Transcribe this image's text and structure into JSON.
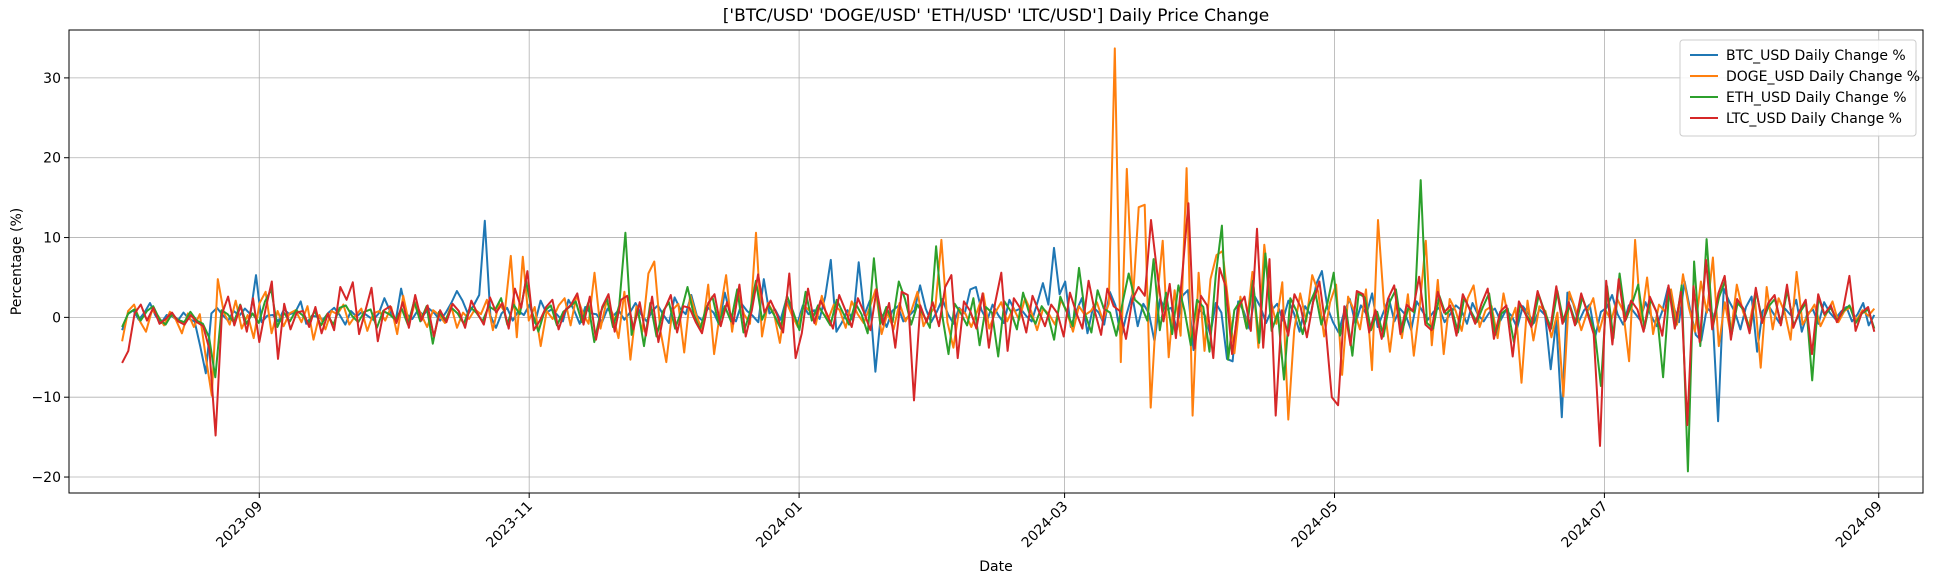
{
  "chart_data": {
    "type": "line",
    "title": "['BTC/USD' 'DOGE/USD' 'ETH/USD' 'LTC/USD'] Daily Price Change",
    "xlabel": "Date",
    "ylabel": "Percentage (%)",
    "xlim": [
      "2023-07-20",
      "2024-09-11"
    ],
    "ylim": [
      -22,
      36
    ],
    "x_ticks": [
      "2023-09",
      "2023-11",
      "2024-01",
      "2024-03",
      "2024-05",
      "2024-07",
      "2024-09"
    ],
    "y_ticks": [
      -20,
      -10,
      0,
      10,
      20,
      30
    ],
    "grid": true,
    "legend_position": "top-right",
    "x": {
      "start": "2023-08-01",
      "end": "2024-08-31",
      "frequency": "daily"
    },
    "series": [
      {
        "name": "BTC_USD Daily Change %",
        "color": "#1f77b4",
        "values": [
          -1.6,
          0.4,
          0.9,
          -0.3,
          0.6,
          1.8,
          0.2,
          -0.7,
          0.3,
          0.1,
          -0.4,
          0.6,
          -0.2,
          -0.5,
          -3.6,
          -7.0,
          0.5,
          1.2,
          0.3,
          -0.4,
          0.8,
          0.2,
          1.1,
          0.4,
          5.3,
          -0.6,
          0.2,
          0.3,
          -0.5,
          1.0,
          0.4,
          0.6,
          2.0,
          -0.8,
          0.2,
          0.1,
          -0.3,
          0.6,
          1.2,
          0.3,
          -0.9,
          0.8,
          0.1,
          0.7,
          0.2,
          -0.3,
          0.5,
          2.4,
          0.8,
          -0.6,
          3.6,
          0.4,
          -0.2,
          0.9,
          0.3,
          1.1,
          0.5,
          -0.4,
          0.6,
          1.8,
          3.3,
          2.1,
          0.4,
          1.5,
          2.8,
          12.1,
          0.2,
          -1.3,
          0.5,
          1.2,
          -0.4,
          0.8,
          0.3,
          1.6,
          -0.7,
          2.1,
          0.6,
          1.0,
          0.3,
          -0.5,
          2.2,
          0.9,
          -0.8,
          1.3,
          0.5,
          0.4,
          -0.6,
          1.1,
          0.2,
          0.9,
          -0.3,
          0.6,
          1.8,
          0.4,
          -0.5,
          0.8,
          1.5,
          0.3,
          -0.7,
          2.5,
          1.1,
          0.4,
          2.8,
          0.2,
          -0.4,
          1.2,
          0.6,
          -0.9,
          3.1,
          0.3,
          -0.5,
          1.7,
          0.8,
          0.2,
          -0.6,
          4.8,
          0.5,
          1.0,
          -0.3,
          2.2,
          0.7,
          -0.8,
          1.5,
          0.4,
          0.9,
          -0.2,
          2.6,
          7.2,
          -1.8,
          -0.6,
          0.9,
          -0.4,
          6.9,
          0.3,
          2.1,
          -6.8,
          0.5,
          -1.2,
          0.8,
          1.4,
          -0.5,
          0.2,
          0.9,
          4.0,
          1.1,
          -0.6,
          0.7,
          2.3,
          0.4,
          -0.8,
          1.2,
          0.5,
          3.5,
          3.8,
          0.9,
          -0.4,
          1.6,
          0.3,
          -0.7,
          2.2,
          0.8,
          1.1,
          0.2,
          -0.5,
          1.8,
          4.3,
          1.6,
          8.7,
          2.9,
          4.5,
          -1.2,
          0.8,
          2.4,
          -2.0,
          1.3,
          0.6,
          -0.9,
          3.2,
          1.5,
          -2.6,
          0.4,
          2.8,
          -1.1,
          1.7,
          0.5,
          -3.0,
          2.3,
          0.9,
          1.2,
          -1.5,
          2.7,
          3.4,
          -4.1,
          1.0,
          0.3,
          -2.2,
          1.8,
          0.6,
          -5.2,
          -5.5,
          2.0,
          0.8,
          -1.4,
          2.6,
          1.3,
          -0.7,
          0.9,
          1.7,
          -0.4,
          2.1,
          0.5,
          -1.8,
          1.4,
          0.3,
          4.2,
          5.8,
          1.2,
          -0.6,
          -1.9,
          0.7,
          2.3,
          -0.8,
          1.5,
          0.4,
          3.0,
          -1.2,
          0.6,
          2.4,
          -0.5,
          1.1,
          0.3,
          -1.6,
          2.0,
          0.8,
          -0.3,
          0.7,
          1.2,
          -0.6,
          0.4,
          1.5,
          0.9,
          -0.8,
          1.8,
          0.3,
          -0.5,
          0.6,
          1.1,
          -0.4,
          0.9,
          0.2,
          -1.3,
          1.4,
          0.5,
          -0.7,
          1.0,
          0.3,
          -6.5,
          -0.4,
          -12.5,
          3.1,
          1.8,
          -0.6,
          0.9,
          1.6,
          -2.4,
          0.7,
          1.2,
          2.8,
          0.4,
          -0.9,
          1.5,
          0.6,
          -0.3,
          1.9,
          0.2,
          -1.1,
          0.8,
          3.7,
          1.4,
          -0.6,
          4.5,
          0.9,
          -2.2,
          -2.9,
          1.2,
          0.5,
          -13.0,
          3.6,
          2.0,
          0.7,
          -1.5,
          1.3,
          2.6,
          -4.3,
          0.8,
          1.5,
          0.4,
          -0.7,
          1.1,
          0.3,
          2.2,
          -1.8,
          0.5,
          1.0,
          -0.8,
          1.9,
          0.6,
          -0.2,
          0.7,
          1.3,
          -0.5,
          0.4,
          1.8,
          -1.0,
          0.3
        ]
      },
      {
        "name": "DOGE_USD Daily Change %",
        "color": "#ff7f0e",
        "values": [
          -3.0,
          0.8,
          1.6,
          -0.5,
          -1.8,
          0.9,
          0.2,
          -1.0,
          0.7,
          -0.3,
          -2.0,
          0.5,
          -1.2,
          0.4,
          -5.0,
          -9.8,
          4.8,
          0.6,
          -0.9,
          2.1,
          -1.4,
          0.3,
          -2.6,
          1.8,
          3.2,
          -2.0,
          0.8,
          -1.1,
          0.5,
          0.9,
          -0.6,
          1.4,
          -2.8,
          0.3,
          -1.5,
          0.8,
          0.4,
          1.6,
          -0.9,
          0.2,
          1.1,
          -1.7,
          0.5,
          0.8,
          -0.4,
          1.3,
          -2.1,
          2.7,
          -0.8,
          1.9,
          0.4,
          -1.2,
          0.9,
          0.3,
          -0.7,
          1.5,
          -1.3,
          0.6,
          -0.2,
          1.0,
          0.4,
          2.2,
          -1.6,
          1.8,
          0.7,
          7.7,
          -2.5,
          7.6,
          -0.4,
          1.3,
          -3.6,
          0.8,
          -0.2,
          1.5,
          2.4,
          -1.0,
          2.8,
          0.6,
          -0.8,
          5.6,
          -1.4,
          2.0,
          0.5,
          -2.6,
          3.2,
          -5.3,
          1.4,
          -1.8,
          5.5,
          7.0,
          -1.6,
          -5.6,
          0.9,
          1.7,
          -4.4,
          2.8,
          0.3,
          -1.6,
          4.1,
          -4.6,
          0.7,
          5.3,
          -1.8,
          3.2,
          0.4,
          -0.8,
          10.6,
          -2.4,
          1.8,
          0.5,
          -3.2,
          2.1,
          0.3,
          -1.2,
          1.5,
          0.8,
          -0.9,
          2.7,
          -0.4,
          1.6,
          0.9,
          -1.3,
          2.0,
          0.4,
          -0.7,
          1.2,
          3.5,
          -2.1,
          0.6,
          -1.5,
          1.8,
          -0.5,
          0.9,
          3.2,
          -1.1,
          0.4,
          1.3,
          9.7,
          -0.6,
          -3.8,
          1.1,
          0.5,
          -1.2,
          0.8,
          3.0,
          -1.4,
          0.6,
          1.9,
          -0.5,
          1.2,
          -0.3,
          2.4,
          0.8,
          -1.6,
          1.1,
          0.4,
          -0.9,
          2.2,
          0.6,
          -1.8,
          1.4,
          0.3,
          0.8,
          1.9,
          -0.4,
          1.7,
          33.7,
          -5.6,
          18.6,
          2.0,
          13.8,
          14.1,
          -11.3,
          1.8,
          9.6,
          -5.0,
          3.4,
          -2.3,
          18.7,
          -12.3,
          5.6,
          -4.2,
          4.8,
          7.8,
          8.3,
          1.6,
          -4.5,
          2.6,
          -1.3,
          5.7,
          -3.8,
          9.1,
          2.4,
          -0.8,
          4.4,
          -12.8,
          -1.6,
          3.0,
          -0.5,
          5.3,
          3.2,
          -2.4,
          1.9,
          4.1,
          -7.2,
          2.6,
          0.9,
          -1.5,
          3.5,
          -6.6,
          12.2,
          1.8,
          -4.3,
          2.0,
          -2.6,
          2.9,
          -4.8,
          1.5,
          9.6,
          -3.5,
          4.7,
          -4.6,
          2.3,
          0.8,
          -1.7,
          2.4,
          4.0,
          -1.2,
          0.9,
          1.4,
          -2.6,
          3.0,
          -0.8,
          1.2,
          -8.2,
          2.1,
          -2.9,
          1.4,
          0.8,
          -2.5,
          0.6,
          -9.9,
          3.2,
          1.1,
          -1.6,
          0.7,
          2.4,
          -1.8,
          1.0,
          -0.4,
          2.3,
          0.8,
          -5.5,
          9.7,
          -0.6,
          5.0,
          -2.1,
          1.6,
          0.7,
          3.5,
          -0.9,
          5.4,
          1.2,
          -1.8,
          4.5,
          0.6,
          7.5,
          -3.6,
          1.9,
          -2.2,
          4.1,
          0.8,
          -1.3,
          2.7,
          -6.3,
          3.8,
          -1.5,
          2.4,
          0.7,
          -2.8,
          5.7,
          -0.9,
          0.4,
          1.6,
          -1.1,
          0.5,
          2.0,
          -0.6,
          0.8,
          1.3,
          -0.4,
          0.9,
          0.2,
          1.1
        ]
      },
      {
        "name": "ETH_USD Daily Change %",
        "color": "#2ca02c",
        "values": [
          -1.2,
          0.5,
          1.0,
          -0.4,
          0.8,
          1.4,
          -0.2,
          -0.9,
          0.4,
          -0.3,
          -0.6,
          0.7,
          -0.4,
          -0.8,
          -2.5,
          -7.5,
          0.9,
          0.4,
          -0.6,
          1.6,
          -0.8,
          0.5,
          -0.7,
          2.0,
          3.5,
          -1.2,
          0.6,
          -0.5,
          0.9,
          0.3,
          -0.7,
          0.8,
          -1.0,
          0.4,
          -0.9,
          1.2,
          1.5,
          0.2,
          -0.6,
          0.7,
          1.0,
          -1.3,
          0.8,
          0.4,
          -0.3,
          1.1,
          -0.9,
          2.0,
          -0.5,
          1.4,
          -3.3,
          0.7,
          -0.4,
          1.2,
          0.5,
          -0.8,
          1.3,
          0.6,
          -0.5,
          1.4,
          0.9,
          2.4,
          -0.9,
          1.6,
          0.4,
          4.6,
          0.6,
          -1.8,
          0.8,
          1.5,
          -1.0,
          0.7,
          1.3,
          2.0,
          -0.6,
          1.8,
          -3.1,
          0.6,
          2.4,
          -1.2,
          1.5,
          10.6,
          -2.2,
          1.1,
          -3.6,
          1.8,
          -2.4,
          0.7,
          1.9,
          -1.4,
          0.8,
          3.8,
          0.4,
          -1.5,
          1.2,
          2.6,
          -0.8,
          1.4,
          -0.5,
          3.5,
          -1.9,
          0.5,
          4.6,
          -0.3,
          1.6,
          0.2,
          -1.4,
          2.7,
          0.7,
          -1.6,
          3.2,
          -0.4,
          1.5,
          0.3,
          -1.0,
          2.2,
          0.6,
          -0.9,
          1.8,
          0.4,
          -2.0,
          7.4,
          -0.8,
          1.3,
          -0.6,
          4.5,
          2.3,
          -0.9,
          1.6,
          0.3,
          -1.3,
          8.9,
          0.2,
          -4.6,
          1.7,
          0.5,
          -1.0,
          2.4,
          -3.5,
          1.3,
          0.6,
          -4.9,
          2.0,
          0.8,
          -1.5,
          3.1,
          0.5,
          -0.8,
          1.4,
          0.3,
          -2.8,
          2.6,
          0.7,
          -1.1,
          6.2,
          0.4,
          -1.9,
          3.4,
          1.1,
          0.6,
          -2.3,
          1.8,
          5.5,
          2.2,
          1.5,
          -0.4,
          7.3,
          -1.6,
          3.1,
          -2.1,
          4.0,
          0.8,
          -3.5,
          2.2,
          1.3,
          -4.3,
          5.2,
          11.5,
          -5.3,
          0.9,
          2.1,
          -1.4,
          4.6,
          -3.2,
          8.0,
          -1.7,
          0.6,
          -7.8,
          2.4,
          0.8,
          -2.1,
          1.5,
          3.3,
          -0.9,
          1.8,
          5.6,
          -2.3,
          1.0,
          -4.8,
          3.0,
          2.5,
          -1.6,
          0.7,
          -2.4,
          1.9,
          3.5,
          -1.8,
          1.2,
          0.6,
          17.2,
          -0.7,
          -1.4,
          2.7,
          0.4,
          1.1,
          -1.9,
          2.4,
          0.9,
          -0.6,
          1.3,
          3.0,
          -2.2,
          0.5,
          1.1,
          -3.1,
          1.6,
          0.3,
          -0.9,
          2.8,
          0.6,
          -1.4,
          3.3,
          -0.6,
          1.5,
          -0.8,
          2.5,
          0.4,
          -1.7,
          -8.6,
          3.9,
          -2.6,
          5.5,
          -0.3,
          1.7,
          4.1,
          -1.4,
          2.2,
          0.6,
          -7.5,
          3.5,
          -1.1,
          4.0,
          -19.3,
          7.0,
          -3.6,
          9.8,
          -1.2,
          2.5,
          4.6,
          -2.3,
          1.8,
          0.9,
          -1.6,
          3.2,
          -0.5,
          1.4,
          2.3,
          -0.8,
          3.4,
          -1.0,
          0.6,
          1.8,
          -7.9,
          2.5,
          0.3,
          1.2,
          -0.4,
          0.8,
          1.5,
          -0.7,
          0.5,
          1.0,
          -1.4
        ]
      },
      {
        "name": "LTC_USD Daily Change %",
        "color": "#d62728",
        "values": [
          -5.7,
          -4.2,
          0.5,
          1.6,
          -0.4,
          1.2,
          -0.8,
          -0.2,
          0.6,
          -0.5,
          -0.9,
          0.3,
          -0.6,
          -1.1,
          -4.0,
          -14.8,
          0.4,
          2.6,
          -1.0,
          1.5,
          -1.8,
          2.4,
          -3.1,
          1.0,
          4.5,
          -5.2,
          1.7,
          -1.5,
          0.6,
          0.8,
          -1.2,
          1.3,
          -2.0,
          0.5,
          -1.6,
          3.8,
          2.2,
          4.4,
          -2.1,
          0.8,
          3.7,
          -3.0,
          0.9,
          1.4,
          -0.7,
          1.9,
          -1.3,
          2.8,
          -0.4,
          1.5,
          -2.4,
          0.9,
          -0.6,
          1.7,
          0.8,
          -1.3,
          2.1,
          0.5,
          -0.9,
          2.5,
          0.6,
          1.8,
          -1.4,
          3.6,
          1.2,
          5.8,
          -1.6,
          -0.4,
          1.3,
          2.2,
          -1.5,
          0.8,
          1.6,
          3.0,
          -0.9,
          2.6,
          -2.8,
          1.3,
          2.9,
          -1.8,
          2.2,
          2.7,
          -1.5,
          1.9,
          -2.3,
          2.6,
          -3.1,
          1.0,
          2.8,
          -1.9,
          1.4,
          1.2,
          -0.6,
          -2.0,
          1.8,
          2.9,
          -1.1,
          1.9,
          -0.8,
          4.1,
          -2.4,
          0.9,
          5.4,
          0.6,
          2.1,
          0.4,
          -1.9,
          5.5,
          -5.1,
          -2.0,
          3.6,
          -0.7,
          2.1,
          0.5,
          -1.4,
          2.8,
          0.9,
          -1.2,
          2.4,
          0.6,
          -1.6,
          3.5,
          -0.9,
          1.8,
          -3.8,
          3.2,
          2.8,
          -10.4,
          1.5,
          -0.6,
          1.9,
          -1.1,
          3.8,
          5.3,
          -5.1,
          2.0,
          0.8,
          -1.4,
          3.0,
          -3.8,
          1.8,
          5.6,
          -4.2,
          2.4,
          1.2,
          -1.9,
          2.7,
          0.8,
          -1.1,
          1.6,
          0.5,
          -2.4,
          3.1,
          0.6,
          -1.4,
          4.6,
          0.7,
          -2.2,
          3.6,
          1.4,
          0.8,
          -2.7,
          2.2,
          3.8,
          2.7,
          12.2,
          5.6,
          -0.5,
          4.2,
          -2.6,
          5.3,
          14.3,
          -3.9,
          2.7,
          1.5,
          -5.1,
          6.2,
          3.8,
          -4.6,
          1.3,
          2.6,
          -1.7,
          11.1,
          -3.8,
          7.3,
          -12.3,
          0.9,
          -2.3,
          2.9,
          1.3,
          -2.5,
          1.9,
          4.5,
          -1.2,
          -10.0,
          -11.0,
          1.4,
          -3.5,
          3.3,
          2.9,
          -1.9,
          0.9,
          -2.7,
          2.3,
          4.0,
          -2.1,
          1.6,
          0.8,
          5.1,
          -0.9,
          -1.6,
          3.2,
          0.6,
          1.5,
          -2.3,
          2.9,
          1.2,
          -0.8,
          1.7,
          3.6,
          -2.7,
          0.7,
          1.5,
          -4.9,
          2.0,
          0.5,
          -1.2,
          3.3,
          0.8,
          -1.7,
          3.9,
          -0.8,
          1.9,
          -1.0,
          3.0,
          0.5,
          -2.1,
          -16.1,
          4.6,
          -3.4,
          4.8,
          -0.5,
          2.1,
          1.0,
          -1.8,
          2.6,
          0.8,
          -2.3,
          4.0,
          -1.4,
          3.2,
          -13.5,
          3.9,
          -3.1,
          7.2,
          -1.5,
          3.0,
          5.2,
          -2.8,
          2.3,
          1.1,
          -2.0,
          3.7,
          -0.7,
          1.8,
          2.8,
          -1.0,
          4.1,
          -1.3,
          0.8,
          2.2,
          -4.6,
          2.9,
          0.4,
          1.5,
          -0.6,
          1.0,
          5.2,
          -1.7,
          0.6,
          1.3,
          -1.8
        ]
      }
    ]
  }
}
